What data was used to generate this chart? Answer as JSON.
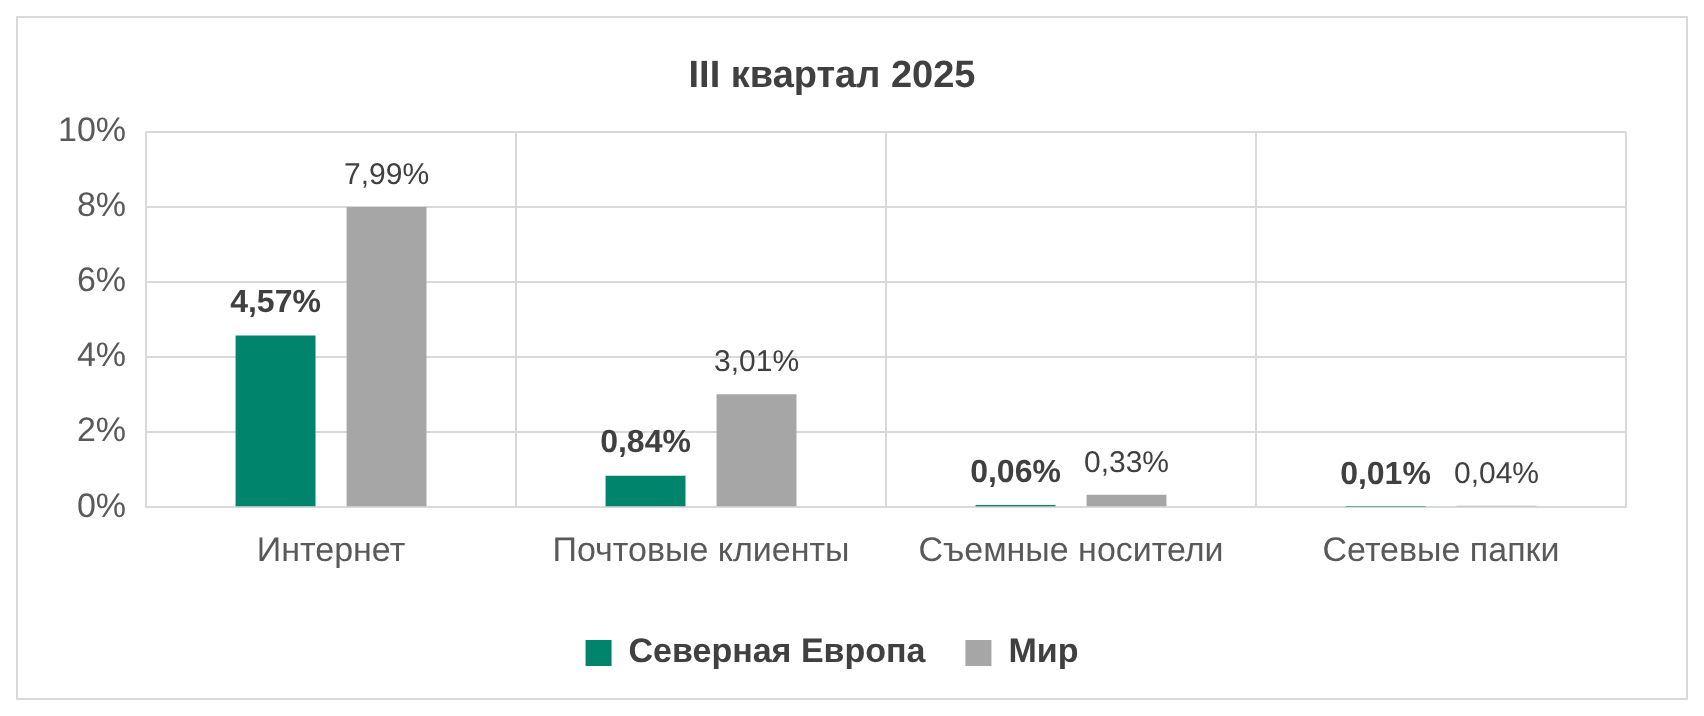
{
  "chart_data": {
    "type": "bar",
    "title": "III квартал 2025",
    "categories": [
      "Интернет",
      "Почтовые клиенты",
      "Съемные носители",
      "Сетевые папки"
    ],
    "series": [
      {
        "name": "Северная Европа",
        "color": "#00856c",
        "values": [
          4.57,
          0.84,
          0.06,
          0.01
        ],
        "value_labels": [
          "4,57%",
          "0,84%",
          "0,06%",
          "0,01%"
        ]
      },
      {
        "name": "Мир",
        "color": "#a6a6a6",
        "values": [
          7.99,
          3.01,
          0.33,
          0.04
        ],
        "value_labels": [
          "7,99%",
          "3,01%",
          "0,33%",
          "0,04%"
        ]
      }
    ],
    "ylim": [
      0,
      10
    ],
    "yticks": [
      {
        "value": 0,
        "label": "0%"
      },
      {
        "value": 2,
        "label": "2%"
      },
      {
        "value": 4,
        "label": "4%"
      },
      {
        "value": 6,
        "label": "6%"
      },
      {
        "value": 8,
        "label": "8%"
      },
      {
        "value": 10,
        "label": "10%"
      }
    ],
    "grid": true,
    "legend": "bottom"
  }
}
